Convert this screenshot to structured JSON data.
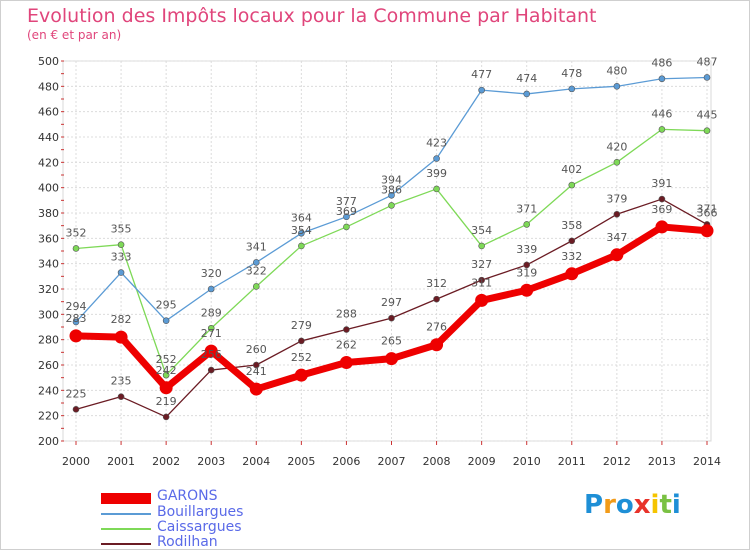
{
  "title": "Evolution des Impôts locaux pour la Commune par Habitant",
  "subtitle": "(en € et par an)",
  "chart_data": {
    "type": "line",
    "title": "Evolution des Impôts locaux pour la Commune par Habitant",
    "subtitle": "(en € et par an)",
    "x": [
      "2000",
      "2001",
      "2002",
      "2003",
      "2004",
      "2005",
      "2006",
      "2007",
      "2008",
      "2009",
      "2010",
      "2011",
      "2012",
      "2013",
      "2014"
    ],
    "ylim": [
      200,
      500
    ],
    "yticks": [
      200,
      220,
      240,
      260,
      280,
      300,
      320,
      340,
      360,
      380,
      400,
      420,
      440,
      460,
      480,
      500
    ],
    "grid": true,
    "legend_position": "bottom-left",
    "series": [
      {
        "name": "GARONS",
        "color": "#ee0000",
        "values": [
          283,
          282,
          242,
          271,
          241,
          252,
          262,
          265,
          276,
          311,
          319,
          332,
          347,
          369,
          366
        ]
      },
      {
        "name": "Bouillargues",
        "color": "#5b9bd5",
        "values": [
          294,
          333,
          295,
          320,
          341,
          364,
          377,
          394,
          423,
          477,
          474,
          478,
          480,
          486,
          487
        ]
      },
      {
        "name": "Caissargues",
        "color": "#7ed957",
        "values": [
          352,
          355,
          252,
          289,
          322,
          354,
          369,
          386,
          399,
          354,
          371,
          402,
          420,
          446,
          445
        ]
      },
      {
        "name": "Rodilhan",
        "color": "#6b1c24",
        "values": [
          225,
          235,
          219,
          256,
          260,
          279,
          288,
          297,
          312,
          327,
          339,
          358,
          379,
          391,
          371
        ]
      }
    ]
  },
  "logo": {
    "letters": [
      "P",
      "r",
      "o",
      "x",
      "i",
      "t",
      "i"
    ],
    "colors": [
      "#1e8fd6",
      "#f29b18",
      "#1e8fd6",
      "#e8322a",
      "#f5c400",
      "#7ac143",
      "#1e8fd6"
    ]
  }
}
